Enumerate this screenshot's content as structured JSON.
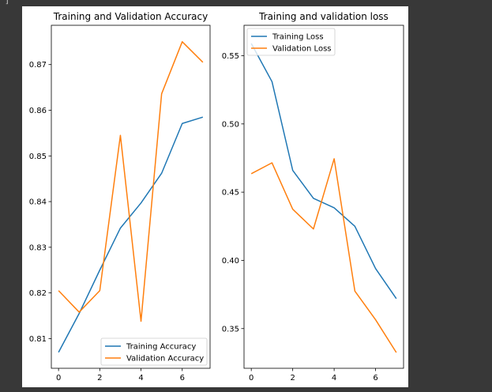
{
  "cell_marker": "]",
  "colors": {
    "training": "#1f77b4",
    "validation": "#ff7f0e",
    "background": "#383838"
  },
  "chart_data": [
    {
      "type": "line",
      "title": "Training and Validation Accuracy",
      "xlabel": "",
      "ylabel": "",
      "x": [
        0,
        1,
        2,
        3,
        4,
        5,
        6,
        7
      ],
      "xlim": [
        -0.35,
        7.35
      ],
      "ylim": [
        0.8035,
        0.8786
      ],
      "xticks": [
        0,
        2,
        4,
        6
      ],
      "yticks": [
        0.81,
        0.82,
        0.83,
        0.84,
        0.85,
        0.86,
        0.87
      ],
      "grid": false,
      "legend": "lower right",
      "series": [
        {
          "name": "Training Accuracy",
          "color": "#1f77b4",
          "values": [
            0.807,
            0.8155,
            0.825,
            0.8342,
            0.8397,
            0.8462,
            0.8571,
            0.8585
          ]
        },
        {
          "name": "Validation Accuracy",
          "color": "#ff7f0e",
          "values": [
            0.8205,
            0.8158,
            0.8205,
            0.8545,
            0.8138,
            0.8636,
            0.875,
            0.8705
          ]
        }
      ]
    },
    {
      "type": "line",
      "title": "Training and validation loss",
      "xlabel": "",
      "ylabel": "",
      "x": [
        0,
        1,
        2,
        3,
        4,
        5,
        6,
        7
      ],
      "xlim": [
        -0.35,
        7.35
      ],
      "ylim": [
        0.3209,
        0.5723
      ],
      "xticks": [
        0,
        2,
        4,
        6
      ],
      "yticks": [
        0.35,
        0.4,
        0.45,
        0.5,
        0.55
      ],
      "grid": false,
      "legend": "upper left",
      "series": [
        {
          "name": "Training Loss",
          "color": "#1f77b4",
          "values": [
            0.559,
            0.531,
            0.466,
            0.4455,
            0.4385,
            0.425,
            0.394,
            0.372
          ]
        },
        {
          "name": "Validation Loss",
          "color": "#ff7f0e",
          "values": [
            0.4635,
            0.4715,
            0.4375,
            0.423,
            0.4745,
            0.3775,
            0.3565,
            0.3325
          ]
        }
      ]
    }
  ]
}
